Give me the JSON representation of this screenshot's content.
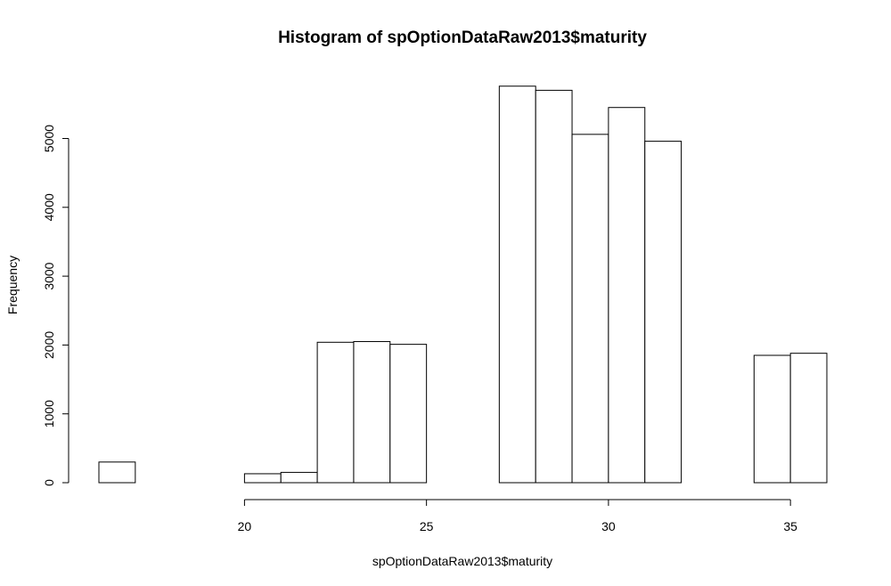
{
  "chart_data": {
    "type": "bar",
    "title": "Histogram of spOptionDataRaw2013$maturity",
    "xlabel": "spOptionDataRaw2013$maturity",
    "ylabel": "Frequency",
    "bin_edges": [
      16,
      17,
      18,
      19,
      20,
      21,
      22,
      23,
      24,
      25,
      26,
      27,
      28,
      29,
      30,
      31,
      32,
      33,
      34,
      35,
      36
    ],
    "values": [
      300,
      0,
      0,
      0,
      130,
      150,
      2040,
      2050,
      2010,
      0,
      0,
      5760,
      5700,
      5060,
      5450,
      4960,
      0,
      0,
      1850,
      1880
    ],
    "x_ticks": [
      "20",
      "25",
      "30",
      "35"
    ],
    "y_ticks": [
      "0",
      "1000",
      "2000",
      "3000",
      "4000",
      "5000"
    ],
    "xlim": [
      16,
      36
    ],
    "ylim": [
      0,
      5760
    ],
    "grid": false
  }
}
